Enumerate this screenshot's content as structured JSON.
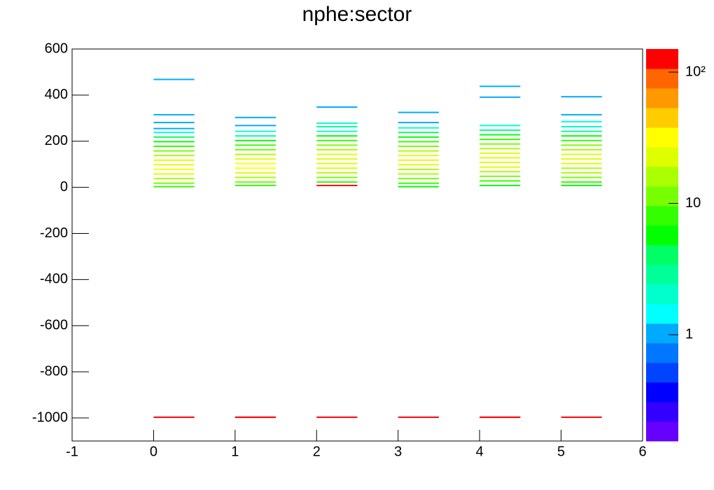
{
  "chart_data": {
    "type": "heatmap",
    "title": "nphe:sector",
    "xlim": [
      -1,
      6
    ],
    "xticks": [
      -1,
      0,
      1,
      2,
      3,
      4,
      5,
      6
    ],
    "ylim": [
      -1100,
      600
    ],
    "yticks": [
      -1000,
      -800,
      -600,
      -400,
      -200,
      0,
      200,
      400,
      600
    ],
    "zlim": [
      0.155,
      150
    ],
    "zscale": "log",
    "zticks": [
      1,
      10,
      {
        "value": 100,
        "label": "10²"
      }
    ],
    "xbin_width": 0.5,
    "ybin_width": 6,
    "palette": [
      "#6600ff",
      "#3300ff",
      "#0000ff",
      "#0044ff",
      "#0077ff",
      "#00aaff",
      "#00ffff",
      "#00ffcc",
      "#00ff99",
      "#00ff66",
      "#00ff00",
      "#33ff00",
      "#77ff00",
      "#aaff00",
      "#ddff00",
      "#ffff00",
      "#ffcc00",
      "#ff9900",
      "#ff6600",
      "#ff0000"
    ],
    "x": [
      0,
      0,
      0,
      0,
      0,
      0,
      0,
      0,
      0,
      0,
      0,
      0,
      0,
      0,
      0,
      0,
      0,
      0,
      1,
      1,
      1,
      1,
      1,
      1,
      1,
      1,
      1,
      1,
      1,
      1,
      1,
      1,
      1,
      1,
      1,
      2,
      2,
      2,
      2,
      2,
      2,
      2,
      2,
      2,
      2,
      2,
      2,
      2,
      2,
      2,
      2,
      2,
      3,
      3,
      3,
      3,
      3,
      3,
      3,
      3,
      3,
      3,
      3,
      3,
      3,
      3,
      3,
      3,
      3,
      4,
      4,
      4,
      4,
      4,
      4,
      4,
      4,
      4,
      4,
      4,
      4,
      4,
      4,
      4,
      4,
      4,
      4,
      5,
      5,
      5,
      5,
      5,
      5,
      5,
      5,
      5,
      5,
      5,
      5,
      5,
      5,
      5,
      5,
      5,
      5
    ],
    "y": [
      465,
      312,
      278,
      252,
      235,
      215,
      195,
      175,
      155,
      135,
      115,
      95,
      75,
      55,
      35,
      15,
      0,
      -1000,
      300,
      265,
      240,
      220,
      200,
      180,
      160,
      140,
      120,
      100,
      80,
      60,
      40,
      20,
      5,
      -1000,
      -1000,
      345,
      275,
      260,
      240,
      220,
      200,
      180,
      160,
      140,
      120,
      100,
      80,
      60,
      40,
      20,
      5,
      -1000,
      322,
      278,
      255,
      235,
      215,
      195,
      175,
      155,
      135,
      115,
      95,
      75,
      55,
      35,
      15,
      0,
      -1000,
      435,
      388,
      265,
      245,
      225,
      205,
      185,
      165,
      145,
      125,
      105,
      85,
      65,
      45,
      25,
      5,
      -1000,
      -1000,
      390,
      312,
      282,
      260,
      240,
      220,
      200,
      180,
      160,
      140,
      120,
      100,
      80,
      60,
      40,
      20,
      5,
      -1000
    ],
    "z": [
      1,
      1,
      1,
      1,
      2,
      4,
      6,
      8,
      12,
      18,
      22,
      26,
      30,
      20,
      14,
      10,
      7,
      130,
      1,
      1,
      2,
      3,
      6,
      9,
      12,
      18,
      24,
      30,
      28,
      20,
      14,
      10,
      8,
      130,
      130,
      1,
      2,
      3,
      2,
      6,
      8,
      12,
      18,
      22,
      26,
      24,
      20,
      14,
      10,
      8,
      130,
      130,
      1,
      1,
      2,
      4,
      6,
      9,
      13,
      18,
      22,
      26,
      24,
      18,
      14,
      10,
      7,
      6,
      130,
      1,
      1,
      2,
      3,
      5,
      8,
      12,
      16,
      22,
      26,
      24,
      20,
      14,
      10,
      8,
      6,
      130,
      130,
      1,
      1,
      2,
      2,
      3,
      5,
      8,
      12,
      16,
      22,
      26,
      24,
      18,
      14,
      10,
      8,
      6,
      130
    ]
  }
}
